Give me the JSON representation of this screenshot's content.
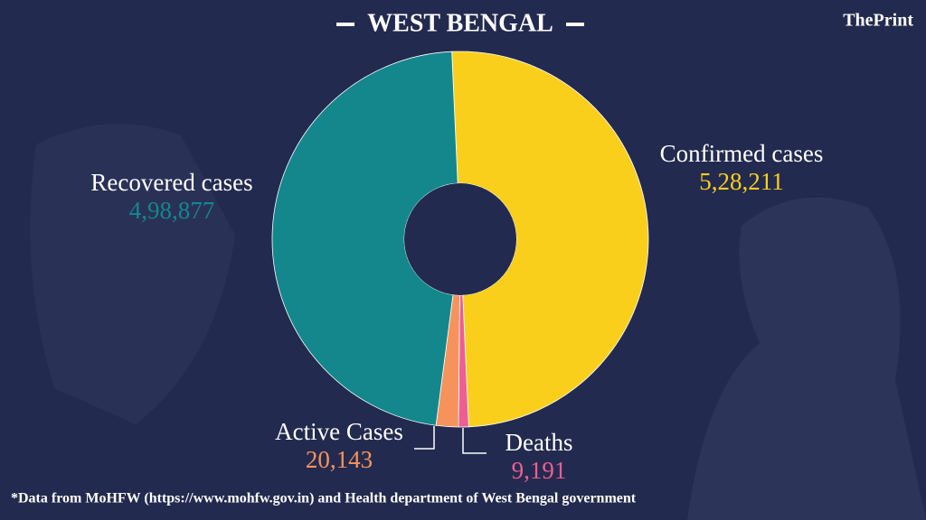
{
  "brand": "ThePrint",
  "chart_data": {
    "type": "pie",
    "title": "WEST BENGAL",
    "categories": [
      "Confirmed cases",
      "Deaths",
      "Active Cases",
      "Recovered cases"
    ],
    "values": [
      528211,
      9191,
      20143,
      498877
    ],
    "value_labels": [
      "5,28,211",
      "9,191",
      "20,143",
      "4,98,877"
    ],
    "colors": [
      "#f9cf1c",
      "#ec5f93",
      "#f6935c",
      "#13878c"
    ],
    "note": "*Data from MoHFW (https://www.mohfw.gov.in)  and Health department of  West Bengal government"
  }
}
